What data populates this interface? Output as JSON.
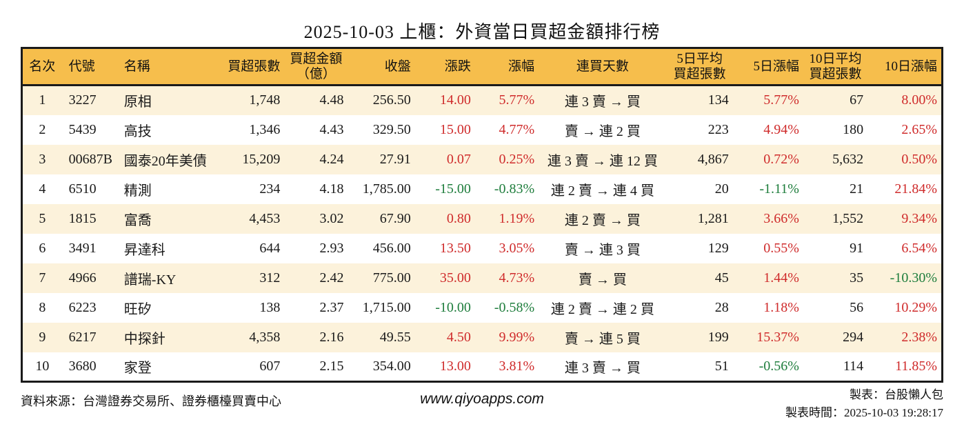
{
  "chart_data": {
    "type": "table",
    "title": "2025-10-03 上櫃：外資當日買超金額排行榜",
    "columns": [
      {
        "key": "rank",
        "label": "名次"
      },
      {
        "key": "code",
        "label": "代號"
      },
      {
        "key": "name",
        "label": "名稱"
      },
      {
        "key": "net_buy_lots",
        "label": "買超張數"
      },
      {
        "key": "net_buy_amount",
        "label": "買超金額\n（億）"
      },
      {
        "key": "close",
        "label": "收盤"
      },
      {
        "key": "change",
        "label": "漲跌"
      },
      {
        "key": "change_pct",
        "label": "漲幅"
      },
      {
        "key": "streak",
        "label": "連買天數"
      },
      {
        "key": "avg5_lots",
        "label": "5日平均\n買超張數"
      },
      {
        "key": "pct5",
        "label": "5日漲幅"
      },
      {
        "key": "avg10_lots",
        "label": "10日平均\n買超張數"
      },
      {
        "key": "pct10",
        "label": "10日漲幅"
      }
    ],
    "rows": [
      {
        "rank": "1",
        "code": "3227",
        "name": "原相",
        "net_buy_lots": "1,748",
        "net_buy_amount": "4.48",
        "close": "256.50",
        "change": "14.00",
        "change_pct": "5.77%",
        "streak": "連 3 賣 → 買",
        "avg5_lots": "134",
        "pct5": "5.77%",
        "avg10_lots": "67",
        "pct10": "8.00%"
      },
      {
        "rank": "2",
        "code": "5439",
        "name": "高技",
        "net_buy_lots": "1,346",
        "net_buy_amount": "4.43",
        "close": "329.50",
        "change": "15.00",
        "change_pct": "4.77%",
        "streak": "賣 → 連 2 買",
        "avg5_lots": "223",
        "pct5": "4.94%",
        "avg10_lots": "180",
        "pct10": "2.65%"
      },
      {
        "rank": "3",
        "code": "00687B",
        "name": "國泰20年美債",
        "net_buy_lots": "15,209",
        "net_buy_amount": "4.24",
        "close": "27.91",
        "change": "0.07",
        "change_pct": "0.25%",
        "streak": "連 3 賣 → 連 12 買",
        "avg5_lots": "4,867",
        "pct5": "0.72%",
        "avg10_lots": "5,632",
        "pct10": "0.50%"
      },
      {
        "rank": "4",
        "code": "6510",
        "name": "精測",
        "net_buy_lots": "234",
        "net_buy_amount": "4.18",
        "close": "1,785.00",
        "change": "-15.00",
        "change_pct": "-0.83%",
        "streak": "連 2 賣 → 連 4 買",
        "avg5_lots": "20",
        "pct5": "-1.11%",
        "avg10_lots": "21",
        "pct10": "21.84%"
      },
      {
        "rank": "5",
        "code": "1815",
        "name": "富喬",
        "net_buy_lots": "4,453",
        "net_buy_amount": "3.02",
        "close": "67.90",
        "change": "0.80",
        "change_pct": "1.19%",
        "streak": "連 2 賣 → 買",
        "avg5_lots": "1,281",
        "pct5": "3.66%",
        "avg10_lots": "1,552",
        "pct10": "9.34%"
      },
      {
        "rank": "6",
        "code": "3491",
        "name": "昇達科",
        "net_buy_lots": "644",
        "net_buy_amount": "2.93",
        "close": "456.00",
        "change": "13.50",
        "change_pct": "3.05%",
        "streak": "賣 → 連 3 買",
        "avg5_lots": "129",
        "pct5": "0.55%",
        "avg10_lots": "91",
        "pct10": "6.54%"
      },
      {
        "rank": "7",
        "code": "4966",
        "name": "譜瑞-KY",
        "net_buy_lots": "312",
        "net_buy_amount": "2.42",
        "close": "775.00",
        "change": "35.00",
        "change_pct": "4.73%",
        "streak": "賣 → 買",
        "avg5_lots": "45",
        "pct5": "1.44%",
        "avg10_lots": "35",
        "pct10": "-10.30%"
      },
      {
        "rank": "8",
        "code": "6223",
        "name": "旺矽",
        "net_buy_lots": "138",
        "net_buy_amount": "2.37",
        "close": "1,715.00",
        "change": "-10.00",
        "change_pct": "-0.58%",
        "streak": "連 2 賣 → 連 2 買",
        "avg5_lots": "28",
        "pct5": "1.18%",
        "avg10_lots": "56",
        "pct10": "10.29%"
      },
      {
        "rank": "9",
        "code": "6217",
        "name": "中探針",
        "net_buy_lots": "4,358",
        "net_buy_amount": "2.16",
        "close": "49.55",
        "change": "4.50",
        "change_pct": "9.99%",
        "streak": "賣 → 連 5 買",
        "avg5_lots": "199",
        "pct5": "15.37%",
        "avg10_lots": "294",
        "pct10": "2.38%"
      },
      {
        "rank": "10",
        "code": "3680",
        "name": "家登",
        "net_buy_lots": "607",
        "net_buy_amount": "2.15",
        "close": "354.00",
        "change": "13.00",
        "change_pct": "3.81%",
        "streak": "連 3 賣 → 買",
        "avg5_lots": "51",
        "pct5": "-0.56%",
        "avg10_lots": "114",
        "pct10": "11.85%"
      }
    ]
  },
  "footer": {
    "source": "資料來源：台灣證券交易所、證券櫃檯買賣中心",
    "website": "www.qiyoapps.com",
    "author": "製表：台股懶人包",
    "generated": "製表時間：2025-10-03 19:28:17"
  },
  "colors": {
    "up": "#CF2B2B",
    "down": "#1E7D3C",
    "header_bg": "#F6BE4C",
    "row_alt_bg": "#FCF2DB",
    "border": "#1A1A1A"
  }
}
